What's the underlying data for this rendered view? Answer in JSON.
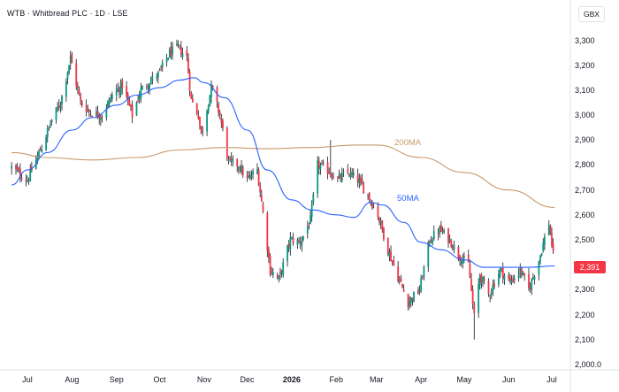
{
  "header": {
    "title": "WTB · Whitbread PLC · 1D · LSE",
    "currency": "GBX",
    "last_price": "2,391"
  },
  "colors": {
    "up": "#089981",
    "down": "#f23645",
    "ma50": "#2962ff",
    "ma200": "#c8996b",
    "wick": "#131722"
  },
  "chart_data": {
    "type": "candlestick",
    "ylim": [
      2000,
      3350
    ],
    "y_ticks": [
      "3,300",
      "3,200",
      "3,100",
      "3,000",
      "2,900",
      "2,800",
      "2,700",
      "2,600",
      "2,500",
      "2,400",
      "2,300",
      "2,200",
      "2,100",
      "2,000.0"
    ],
    "x_ticks": [
      "Jul",
      "Aug",
      "Sep",
      "Oct",
      "Nov",
      "Dec",
      "2026",
      "Feb",
      "Mar",
      "Apr",
      "May",
      "Jun",
      "Jul"
    ],
    "x_tick_dates": [
      "2025-07-01",
      "2025-08-01",
      "2025-09-01",
      "2025-10-01",
      "2025-11-01",
      "2025-12-01",
      "2026-01-01",
      "2026-02-01",
      "2026-03-01",
      "2026-04-01",
      "2026-05-01",
      "2026-06-01",
      "2026-07-01"
    ],
    "anchor_closes": [
      [
        "2025-06-20",
        2790
      ],
      [
        "2025-07-01",
        2740
      ],
      [
        "2025-07-10",
        2860
      ],
      [
        "2025-07-18",
        2980
      ],
      [
        "2025-07-24",
        3050
      ],
      [
        "2025-07-31",
        3230
      ],
      [
        "2025-08-07",
        3050
      ],
      [
        "2025-08-14",
        3010
      ],
      [
        "2025-08-22",
        3000
      ],
      [
        "2025-08-29",
        3080
      ],
      [
        "2025-09-05",
        3120
      ],
      [
        "2025-09-12",
        3000
      ],
      [
        "2025-09-18",
        3100
      ],
      [
        "2025-09-25",
        3140
      ],
      [
        "2025-10-01",
        3170
      ],
      [
        "2025-10-08",
        3250
      ],
      [
        "2025-10-14",
        3270
      ],
      [
        "2025-10-20",
        3230
      ],
      [
        "2025-10-23",
        3060
      ],
      [
        "2025-10-28",
        3000
      ],
      [
        "2025-10-30",
        2920
      ],
      [
        "2025-11-06",
        3110
      ],
      [
        "2025-11-12",
        3000
      ],
      [
        "2025-11-18",
        2810
      ],
      [
        "2025-11-25",
        2800
      ],
      [
        "2025-12-01",
        2740
      ],
      [
        "2025-12-08",
        2780
      ],
      [
        "2025-12-12",
        2610
      ],
      [
        "2025-12-17",
        2380
      ],
      [
        "2025-12-23",
        2340
      ],
      [
        "2025-12-31",
        2500
      ],
      [
        "2026-01-07",
        2490
      ],
      [
        "2026-01-14",
        2580
      ],
      [
        "2026-01-19",
        2800
      ],
      [
        "2026-01-26",
        2780
      ],
      [
        "2026-02-02",
        2740
      ],
      [
        "2026-02-09",
        2770
      ],
      [
        "2026-02-16",
        2740
      ],
      [
        "2026-02-23",
        2680
      ],
      [
        "2026-03-02",
        2600
      ],
      [
        "2026-03-09",
        2460
      ],
      [
        "2026-03-16",
        2350
      ],
      [
        "2026-03-23",
        2250
      ],
      [
        "2026-03-31",
        2300
      ],
      [
        "2026-04-07",
        2500
      ],
      [
        "2026-04-14",
        2540
      ],
      [
        "2026-04-21",
        2500
      ],
      [
        "2026-04-27",
        2440
      ],
      [
        "2026-05-04",
        2400
      ],
      [
        "2026-05-08",
        2190
      ],
      [
        "2026-05-12",
        2360
      ],
      [
        "2026-05-18",
        2280
      ],
      [
        "2026-05-26",
        2380
      ],
      [
        "2026-06-02",
        2330
      ],
      [
        "2026-06-09",
        2380
      ],
      [
        "2026-06-15",
        2300
      ],
      [
        "2026-06-22",
        2420
      ],
      [
        "2026-06-29",
        2570
      ],
      [
        "2026-07-03",
        2391
      ]
    ],
    "spikes": [
      [
        "2026-01-28",
        2900,
        "high"
      ],
      [
        "2026-05-08",
        2100,
        "low"
      ]
    ],
    "ma50_points": [
      [
        "2025-06-20",
        2720
      ],
      [
        "2025-07-01",
        2780
      ],
      [
        "2025-07-15",
        2850
      ],
      [
        "2025-08-01",
        2940
      ],
      [
        "2025-08-15",
        2990
      ],
      [
        "2025-09-01",
        3040
      ],
      [
        "2025-09-15",
        3080
      ],
      [
        "2025-10-01",
        3110
      ],
      [
        "2025-10-15",
        3140
      ],
      [
        "2025-10-25",
        3150
      ],
      [
        "2025-11-01",
        3130
      ],
      [
        "2025-11-15",
        3070
      ],
      [
        "2025-12-01",
        2940
      ],
      [
        "2025-12-15",
        2780
      ],
      [
        "2026-01-01",
        2660
      ],
      [
        "2026-01-15",
        2620
      ],
      [
        "2026-02-01",
        2600
      ],
      [
        "2026-02-13",
        2590
      ],
      [
        "2026-02-25",
        2650
      ],
      [
        "2026-03-05",
        2640
      ],
      [
        "2026-03-20",
        2570
      ],
      [
        "2026-04-01",
        2490
      ],
      [
        "2026-04-15",
        2460
      ],
      [
        "2026-05-01",
        2420
      ],
      [
        "2026-05-15",
        2390
      ],
      [
        "2026-06-01",
        2390
      ],
      [
        "2026-06-15",
        2390
      ],
      [
        "2026-07-03",
        2395
      ]
    ],
    "ma200_points": [
      [
        "2025-06-20",
        2850
      ],
      [
        "2025-07-15",
        2830
      ],
      [
        "2025-08-15",
        2820
      ],
      [
        "2025-09-15",
        2830
      ],
      [
        "2025-10-15",
        2860
      ],
      [
        "2025-11-15",
        2870
      ],
      [
        "2025-12-15",
        2865
      ],
      [
        "2026-01-15",
        2870
      ],
      [
        "2026-02-15",
        2880
      ],
      [
        "2026-03-01",
        2880
      ],
      [
        "2026-04-01",
        2830
      ],
      [
        "2026-05-01",
        2770
      ],
      [
        "2026-06-01",
        2700
      ],
      [
        "2026-07-03",
        2630
      ]
    ],
    "series": [
      {
        "name": "50MA"
      },
      {
        "name": "200MA"
      }
    ]
  }
}
